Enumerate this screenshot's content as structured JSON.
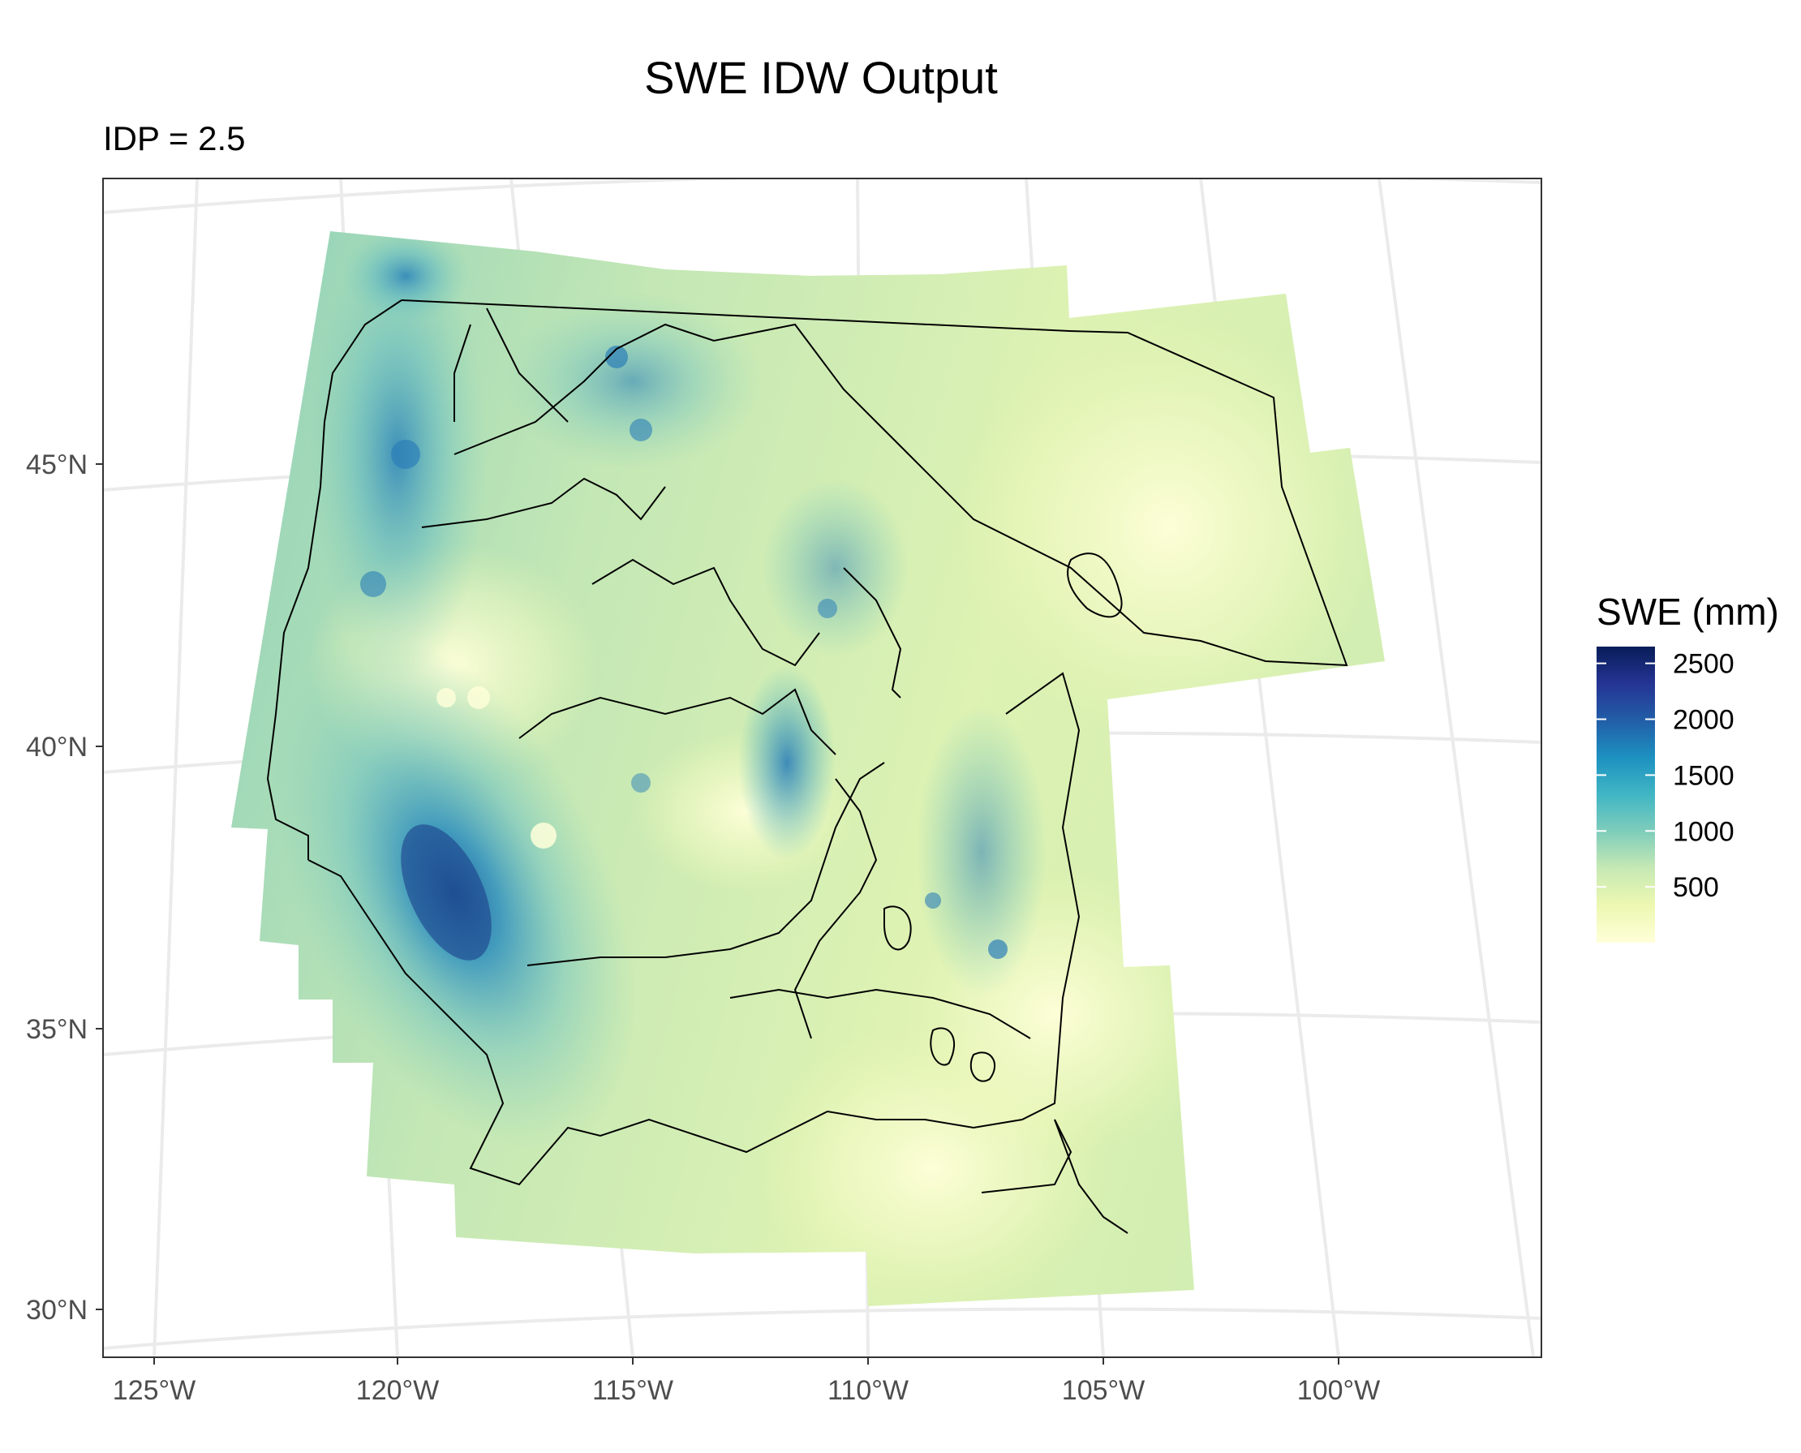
{
  "title": "SWE IDW Output",
  "subtitle": "IDP = 2.5",
  "map": {
    "variable": "SWE",
    "idp": 2.5,
    "region": "Western United States",
    "lon_range": [
      -126,
      -97
    ],
    "lat_range": [
      29,
      50
    ],
    "x_ticks": [
      "125°W",
      "120°W",
      "115°W",
      "110°W",
      "105°W",
      "100°W"
    ],
    "y_ticks": [
      "45°N",
      "40°N",
      "35°N",
      "30°N"
    ],
    "grid": true
  },
  "legend": {
    "title": "SWE (mm)",
    "labels": [
      "2500",
      "2000",
      "1500",
      "1000",
      "500"
    ],
    "values": [
      2500,
      2000,
      1500,
      1000,
      500
    ],
    "range": [
      0,
      2650
    ],
    "palette": [
      "#FFFFD9",
      "#EDF8B1",
      "#C7E9B4",
      "#7FCDBB",
      "#41B6C4",
      "#1D91C0",
      "#225EA8",
      "#253494",
      "#081D58"
    ]
  }
}
